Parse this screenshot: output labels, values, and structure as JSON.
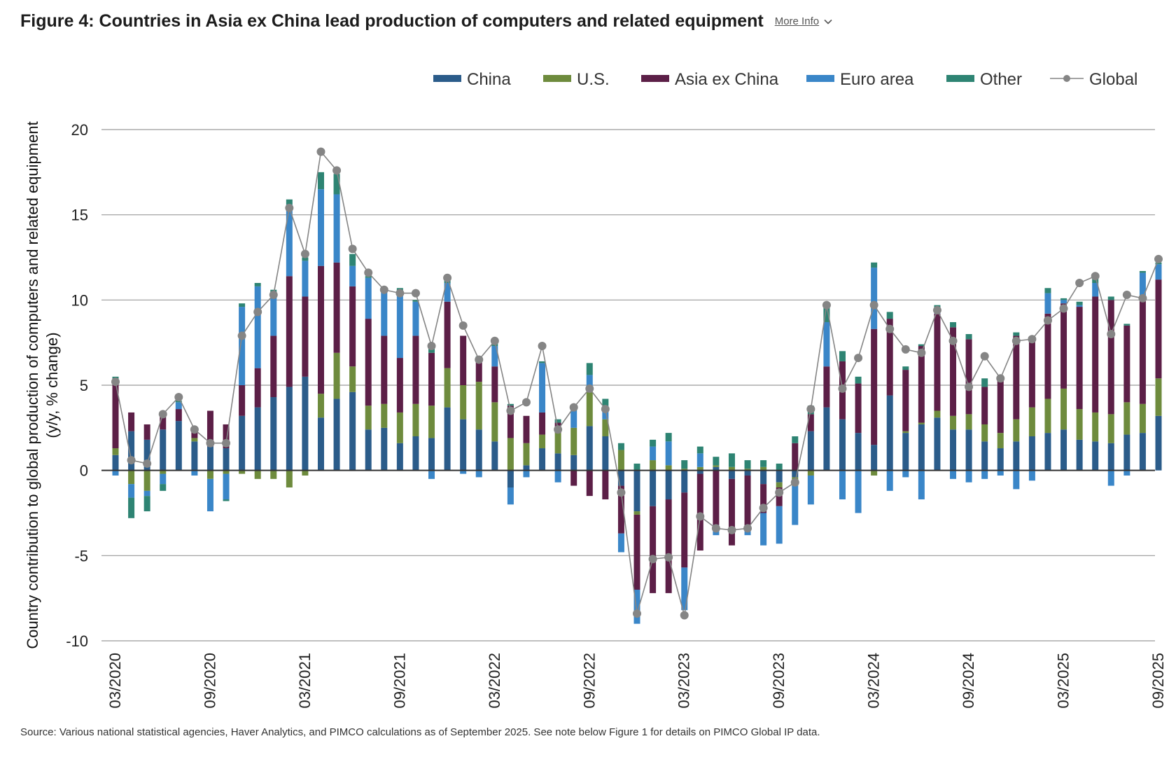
{
  "header": {
    "title": "Figure 4: Countries in Asia ex China lead production of computers and related equipment",
    "more_info_label": "More Info"
  },
  "source": "Source: Various national statistical agencies, Haver Analytics, and PIMCO calculations as of September 2025. See note below Figure 1 for details on PIMCO Global IP data.",
  "colors": {
    "China": "#2B5C8A",
    "U.S.": "#6E8B3D",
    "Asia ex China": "#5C1F47",
    "Euro area": "#3A86C8",
    "Other": "#2E8473",
    "Global": "#858585"
  },
  "chart_data": {
    "type": "bar",
    "stacked": true,
    "ylabel": "Country contribution to global production of computers and related equipment (y/y, % change)",
    "ylabel_lines": [
      "Country contribution to global production of computers and related equipment",
      "(y/y, % change)"
    ],
    "ylim": [
      -10,
      20
    ],
    "yticks": [
      -10,
      -5,
      0,
      5,
      10,
      15,
      20
    ],
    "grid": true,
    "legend_position": "top-right",
    "x": [
      "03/2020",
      "04/2020",
      "05/2020",
      "06/2020",
      "07/2020",
      "08/2020",
      "09/2020",
      "10/2020",
      "11/2020",
      "12/2020",
      "01/2021",
      "02/2021",
      "03/2021",
      "04/2021",
      "05/2021",
      "06/2021",
      "07/2021",
      "08/2021",
      "09/2021",
      "10/2021",
      "11/2021",
      "12/2021",
      "01/2022",
      "02/2022",
      "03/2022",
      "04/2022",
      "05/2022",
      "06/2022",
      "07/2022",
      "08/2022",
      "09/2022",
      "10/2022",
      "11/2022",
      "12/2022",
      "01/2023",
      "02/2023",
      "03/2023",
      "04/2023",
      "05/2023",
      "06/2023",
      "07/2023",
      "08/2023",
      "09/2023",
      "10/2023",
      "11/2023",
      "12/2023",
      "01/2024",
      "02/2024",
      "03/2024",
      "04/2024",
      "05/2024",
      "06/2024",
      "07/2024",
      "08/2024",
      "09/2024",
      "10/2024",
      "11/2024",
      "12/2024",
      "01/2025",
      "02/2025",
      "03/2025",
      "04/2025",
      "05/2025",
      "06/2025",
      "07/2025",
      "08/2025",
      "09/2025"
    ],
    "xtick_labels": [
      "03/2020",
      "09/2020",
      "03/2021",
      "09/2021",
      "03/2022",
      "09/2022",
      "03/2023",
      "09/2023",
      "03/2024",
      "09/2024",
      "03/2025",
      "09/2025"
    ],
    "series": [
      {
        "name": "China",
        "kind": "bar",
        "values": [
          0.9,
          2.3,
          1.8,
          2.4,
          2.9,
          1.7,
          1.4,
          1.3,
          3.2,
          3.7,
          4.3,
          4.9,
          5.5,
          3.1,
          4.2,
          4.6,
          2.4,
          2.5,
          1.6,
          2.0,
          1.9,
          3.7,
          3.0,
          2.4,
          1.7,
          -1.0,
          0.3,
          1.3,
          1.0,
          0.9,
          2.6,
          2.0,
          -0.9,
          -2.4,
          -2.1,
          -1.7,
          -1.3,
          -0.2,
          0.2,
          -0.5,
          -0.3,
          -0.8,
          -0.7,
          -0.4,
          2.3,
          3.7,
          3.0,
          2.2,
          1.5,
          4.4,
          2.2,
          2.7,
          3.1,
          2.4,
          2.4,
          1.7,
          1.3,
          1.7,
          2.0,
          2.2,
          2.4,
          1.8,
          1.7,
          1.6,
          2.1,
          2.2,
          3.2
        ]
      },
      {
        "name": "U.S.",
        "kind": "bar",
        "values": [
          0.4,
          -0.8,
          -1.2,
          -0.2,
          0.0,
          0.2,
          -0.5,
          -0.2,
          -0.2,
          -0.5,
          -0.5,
          -1.0,
          -0.3,
          1.4,
          2.7,
          1.5,
          1.4,
          1.4,
          1.8,
          1.9,
          1.9,
          2.3,
          2.0,
          2.8,
          2.3,
          1.9,
          1.3,
          0.8,
          1.2,
          1.6,
          2.2,
          1.0,
          1.2,
          -0.2,
          0.6,
          0.3,
          0.1,
          0.2,
          0.1,
          0.2,
          0.1,
          0.2,
          -0.3,
          -0.5,
          -0.3,
          0.0,
          0.0,
          0.0,
          -0.3,
          0.0,
          0.1,
          0.1,
          0.4,
          0.8,
          0.9,
          1.0,
          0.9,
          1.3,
          1.7,
          2.0,
          2.4,
          1.8,
          1.7,
          1.7,
          1.9,
          1.7,
          2.2
        ]
      },
      {
        "name": "Asia ex China",
        "kind": "bar",
        "values": [
          4.1,
          1.1,
          0.9,
          0.9,
          0.7,
          0.4,
          2.1,
          1.4,
          1.8,
          2.3,
          3.6,
          6.5,
          4.7,
          7.5,
          5.3,
          4.7,
          5.1,
          4.0,
          3.2,
          4.0,
          3.1,
          3.9,
          2.9,
          1.4,
          2.1,
          1.9,
          1.6,
          1.3,
          0.6,
          -0.9,
          -1.5,
          -1.7,
          -2.8,
          -4.4,
          -5.1,
          -5.5,
          -4.4,
          -4.5,
          -3.2,
          -3.9,
          -3.0,
          -1.7,
          -1.1,
          1.6,
          1.0,
          2.4,
          3.4,
          2.9,
          6.8,
          4.5,
          3.6,
          4.5,
          5.7,
          5.2,
          4.4,
          2.2,
          3.1,
          4.9,
          4.0,
          5.0,
          5.0,
          6.0,
          6.8,
          6.7,
          4.5,
          6.3,
          5.8
        ]
      },
      {
        "name": "Euro area",
        "kind": "bar",
        "values": [
          -0.3,
          -0.8,
          -0.3,
          -0.6,
          0.4,
          -0.3,
          -1.9,
          -1.5,
          4.6,
          4.8,
          2.2,
          4.2,
          2.1,
          4.5,
          4.0,
          1.2,
          2.4,
          2.6,
          3.9,
          2.0,
          -0.5,
          1.1,
          -0.2,
          -0.4,
          1.2,
          -1.0,
          -0.4,
          2.9,
          -0.7,
          1.0,
          0.8,
          0.8,
          -1.1,
          -2.0,
          0.8,
          1.4,
          -2.5,
          0.8,
          -0.6,
          0.0,
          -0.5,
          -1.9,
          -2.2,
          -2.3,
          -1.7,
          2.6,
          -1.7,
          -2.5,
          3.6,
          -1.2,
          -0.4,
          -1.7,
          0.3,
          -0.5,
          -0.7,
          -0.5,
          -0.3,
          -1.1,
          -0.6,
          1.2,
          0.2,
          0.1,
          0.8,
          -0.9,
          -0.3,
          1.4,
          0.9
        ]
      },
      {
        "name": "Other",
        "kind": "bar",
        "values": [
          0.1,
          -1.2,
          -0.9,
          -0.4,
          0.1,
          0.1,
          0.0,
          -0.1,
          0.2,
          0.2,
          0.5,
          0.3,
          0.2,
          1.0,
          1.2,
          0.7,
          0.1,
          0.1,
          0.2,
          0.1,
          0.4,
          0.4,
          0.0,
          0.1,
          0.2,
          0.1,
          0.0,
          0.1,
          0.2,
          0.2,
          0.7,
          0.4,
          0.4,
          0.4,
          0.4,
          0.5,
          0.5,
          0.4,
          0.5,
          0.8,
          0.5,
          0.4,
          0.4,
          0.4,
          0.5,
          1.0,
          0.6,
          0.4,
          0.3,
          0.4,
          0.2,
          0.1,
          0.2,
          0.3,
          0.3,
          0.5,
          0.2,
          0.2,
          0.1,
          0.3,
          0.1,
          0.2,
          0.4,
          0.2,
          0.1,
          0.1,
          0.1
        ]
      },
      {
        "name": "Global",
        "kind": "line",
        "values": [
          5.2,
          0.6,
          0.4,
          3.3,
          4.3,
          2.4,
          1.6,
          1.6,
          7.9,
          9.3,
          10.3,
          15.4,
          12.7,
          18.7,
          17.6,
          13.0,
          11.6,
          10.6,
          10.4,
          10.4,
          7.3,
          11.3,
          8.5,
          6.5,
          7.6,
          3.5,
          4.0,
          7.3,
          2.4,
          3.7,
          4.8,
          3.6,
          -1.3,
          -8.4,
          -5.2,
          -5.1,
          -8.5,
          -2.7,
          -3.4,
          -3.5,
          -3.4,
          -2.2,
          -1.3,
          -0.7,
          3.6,
          9.7,
          4.8,
          6.6,
          9.7,
          8.3,
          7.1,
          6.9,
          9.4,
          7.6,
          4.9,
          6.7,
          5.4,
          7.6,
          7.7,
          8.8,
          9.5,
          11.0,
          11.4,
          8.0,
          10.3,
          10.1,
          12.4
        ]
      }
    ]
  }
}
